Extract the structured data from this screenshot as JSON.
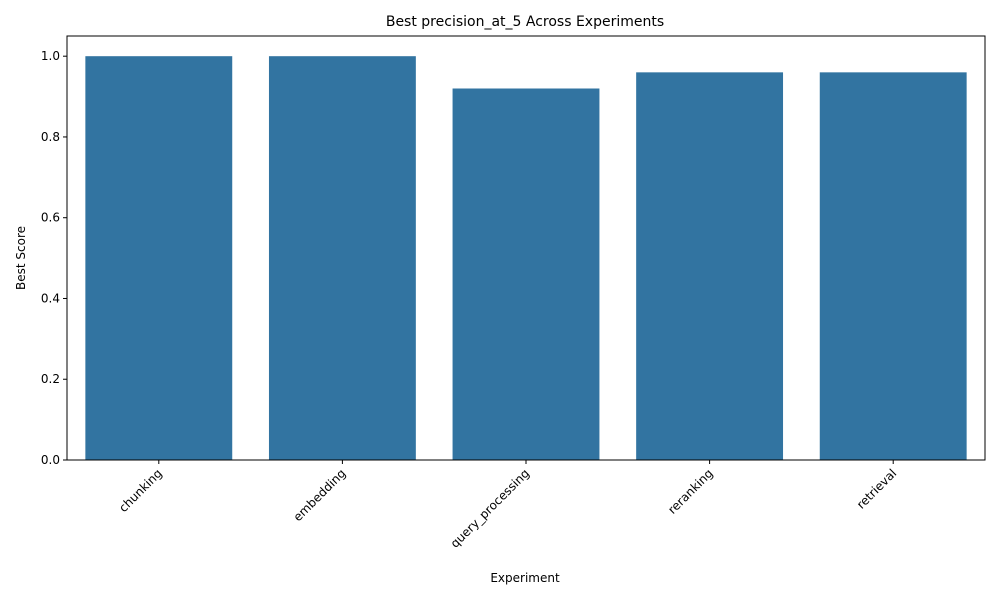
{
  "chart_data": {
    "type": "bar",
    "title": "Best precision_at_5 Across Experiments",
    "xlabel": "Experiment",
    "ylabel": "Best Score",
    "categories": [
      "chunking",
      "embedding",
      "query_processing",
      "reranking",
      "retrieval"
    ],
    "values": [
      1.0,
      1.0,
      0.92,
      0.96,
      0.96
    ],
    "ylim": [
      0,
      1.05
    ],
    "yticks": [
      "0.0",
      "0.2",
      "0.4",
      "0.6",
      "0.8",
      "1.0"
    ],
    "grid": false,
    "legend": "none",
    "bar_color": "#3274a1",
    "x_tick_rotation_deg": 45
  }
}
